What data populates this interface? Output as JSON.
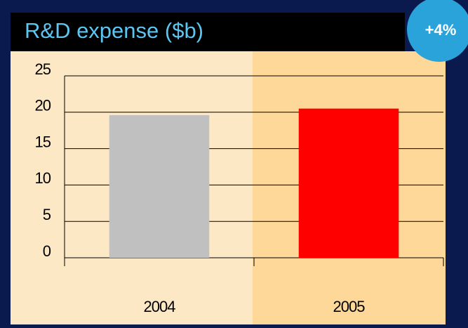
{
  "chart_data": {
    "type": "bar",
    "title": "R&D expense ($b)",
    "annotation": "+4%",
    "categories": [
      "2004",
      "2005"
    ],
    "values": [
      19.6,
      20.5
    ],
    "colors": [
      "#c0c0c0",
      "#ff0000"
    ],
    "ylim": [
      0,
      25
    ],
    "yticks": [
      0,
      5,
      10,
      15,
      20,
      25
    ],
    "grid": true
  }
}
